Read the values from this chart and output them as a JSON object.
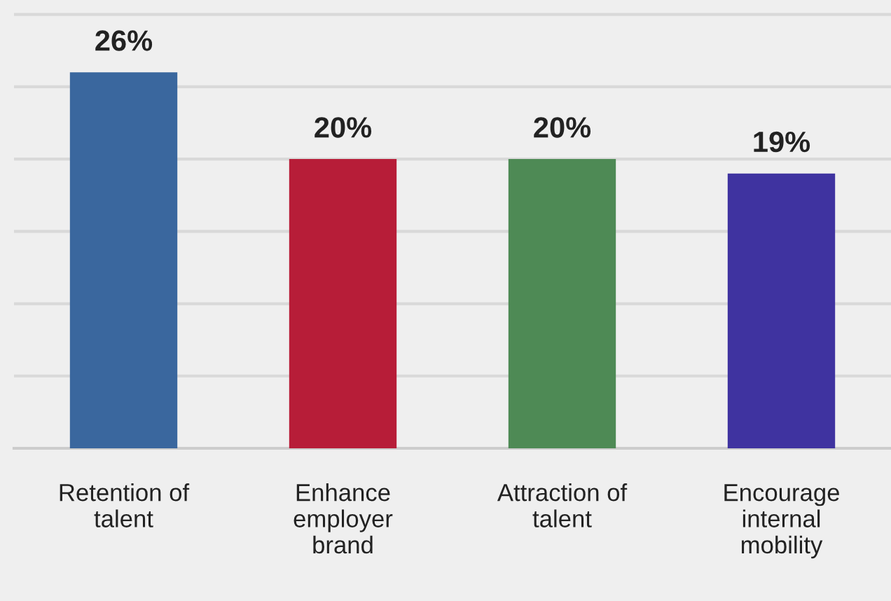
{
  "chart_data": {
    "type": "bar",
    "categories": [
      "Retention of\ntalent",
      "Enhance\nemployer\nbrand",
      "Attraction of\ntalent",
      "Encourage\ninternal\nmobility"
    ],
    "values": [
      26,
      20,
      20,
      19
    ],
    "colors": [
      "#3a679e",
      "#b71d38",
      "#4e8a55",
      "#3f33a0"
    ],
    "value_labels": [
      "26%",
      "20%",
      "20%",
      "19%"
    ],
    "ylim": [
      0,
      31
    ],
    "yticks": [
      {
        "value": 0,
        "label": null
      },
      {
        "value": 5,
        "label": null
      },
      {
        "value": 10,
        "label": null
      },
      {
        "value": 15,
        "label": null
      },
      {
        "value": 20,
        "label": null
      },
      {
        "value": 25,
        "label": null
      },
      {
        "value": 30,
        "label": null
      }
    ],
    "grid": "y",
    "tick_labels": "x",
    "legend": false
  }
}
